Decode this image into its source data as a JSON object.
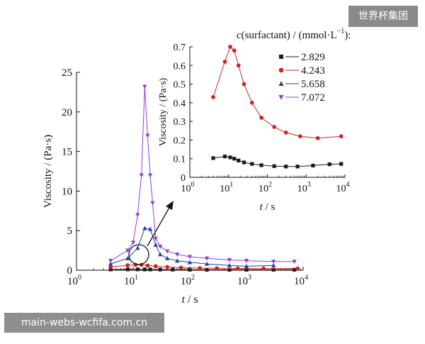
{
  "watermarks": {
    "top_right": "世界杯集团",
    "bottom_left": "main-webs-wcfifa.com.cn"
  },
  "chart_data": [
    {
      "id": "main",
      "type": "line",
      "xscale": "log",
      "xlim": [
        1,
        10000
      ],
      "ylim": [
        0,
        25
      ],
      "xticks": [
        {
          "value": 1,
          "base": "10",
          "exp": "0"
        },
        {
          "value": 10,
          "base": "10",
          "exp": "1"
        },
        {
          "value": 100,
          "base": "10",
          "exp": "2"
        },
        {
          "value": 1000,
          "base": "10",
          "exp": "3"
        },
        {
          "value": 10000,
          "base": "10",
          "exp": "4"
        }
      ],
      "yticks": [
        "0",
        "5",
        "10",
        "15",
        "20",
        "25"
      ],
      "xlabel": {
        "var": "t",
        "unit": " / s"
      },
      "ylabel": "Viscosity / (Pa·s)",
      "series": [
        {
          "name": "2.829",
          "color": "#1a1a1a",
          "marker": "square",
          "x": [
            4,
            8,
            12,
            16,
            20,
            30,
            50,
            100,
            200,
            500,
            1000,
            3000,
            7000
          ],
          "y": [
            0.1,
            0.11,
            0.11,
            0.1,
            0.1,
            0.09,
            0.08,
            0.07,
            0.06,
            0.06,
            0.06,
            0.07,
            0.07
          ]
        },
        {
          "name": "4.243",
          "color": "#d42020",
          "marker": "circle",
          "x": [
            4,
            8,
            11,
            14,
            18,
            25,
            40,
            70,
            150,
            300,
            700,
            2000,
            8000
          ],
          "y": [
            0.43,
            0.62,
            0.7,
            0.68,
            0.6,
            0.5,
            0.4,
            0.32,
            0.27,
            0.24,
            0.22,
            0.21,
            0.22
          ]
        },
        {
          "name": "5.658",
          "color": "#2040b0",
          "marker": "triangle-up",
          "x": [
            4,
            8,
            12,
            16,
            20,
            25,
            30,
            40,
            60,
            100,
            200,
            500,
            1000,
            3000
          ],
          "y": [
            0.8,
            1.5,
            2.8,
            5.3,
            5.2,
            3.2,
            2.0,
            1.5,
            1.2,
            1.0,
            0.8,
            0.6,
            0.5,
            0.6
          ]
        },
        {
          "name": "7.072",
          "color": "#9040d8",
          "marker": "triangle-down",
          "x": [
            4,
            8,
            10,
            12,
            14,
            16,
            18,
            20,
            22,
            25,
            30,
            40,
            60,
            100,
            200,
            500,
            1000,
            3000,
            7000
          ],
          "y": [
            1.2,
            2.5,
            3.5,
            7.0,
            12.0,
            23.2,
            17.0,
            12.0,
            8.5,
            4.0,
            3.0,
            2.4,
            2.0,
            1.7,
            1.5,
            1.3,
            1.2,
            1.1,
            1.1
          ]
        }
      ]
    },
    {
      "id": "inset",
      "type": "line",
      "xscale": "log",
      "xlim": [
        1,
        10000
      ],
      "ylim": [
        0,
        0.7
      ],
      "xticks": [
        {
          "value": 1,
          "base": "10",
          "exp": "0"
        },
        {
          "value": 10,
          "base": "10",
          "exp": "1"
        },
        {
          "value": 100,
          "base": "10",
          "exp": "2"
        },
        {
          "value": 1000,
          "base": "10",
          "exp": "3"
        },
        {
          "value": 10000,
          "base": "10",
          "exp": "4"
        }
      ],
      "yticks": [
        "0",
        "0.1",
        "0.2",
        "0.3",
        "0.4",
        "0.5",
        "0.6",
        "0.7"
      ],
      "xlabel": {
        "var": "t",
        "unit": " / s"
      },
      "ylabel": "Viscosity / (Pa·s)",
      "legend_title": {
        "var": "c",
        "text": "(surfactant) / (mmol·L",
        "sup": "−1",
        "end": "):"
      },
      "legend_position": "top-right",
      "series": [
        {
          "name": "2.829",
          "color": "#1a1a1a",
          "marker": "square",
          "x": [
            4,
            8,
            11,
            14,
            18,
            25,
            40,
            70,
            150,
            300,
            600,
            1500,
            4000,
            8000
          ],
          "y": [
            0.103,
            0.112,
            0.107,
            0.1,
            0.09,
            0.08,
            0.072,
            0.065,
            0.06,
            0.058,
            0.058,
            0.063,
            0.07,
            0.072
          ]
        },
        {
          "name": "4.243",
          "color": "#d42020",
          "marker": "circle",
          "x": [
            4,
            8,
            11,
            14,
            18,
            25,
            40,
            70,
            150,
            300,
            700,
            2000,
            8000
          ],
          "y": [
            0.43,
            0.62,
            0.7,
            0.68,
            0.6,
            0.5,
            0.4,
            0.32,
            0.27,
            0.24,
            0.22,
            0.21,
            0.22
          ]
        },
        {
          "name": "5.658",
          "color": "#2040b0",
          "marker": "triangle-up",
          "x": [],
          "y": []
        },
        {
          "name": "7.072",
          "color": "#9040d8",
          "marker": "triangle-down",
          "x": [],
          "y": []
        }
      ]
    }
  ]
}
